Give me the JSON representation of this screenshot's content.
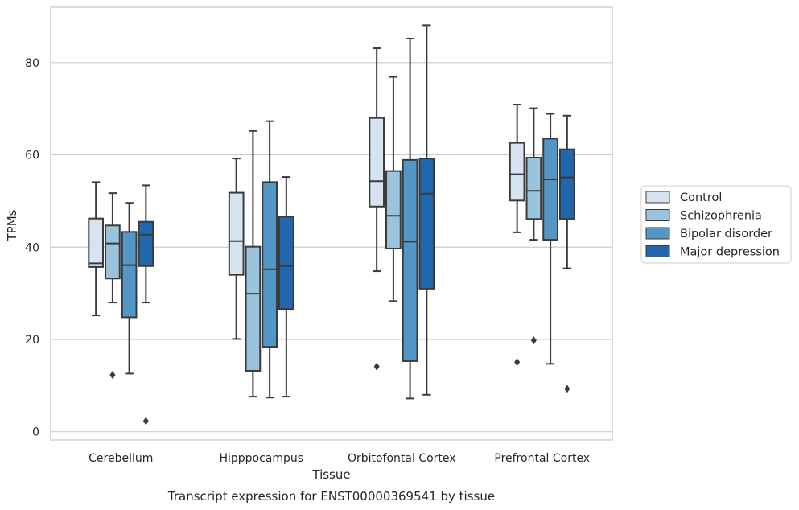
{
  "chart_data": {
    "type": "boxplot",
    "title": "Transcript expression for ENST00000369541 by tissue",
    "xlabel": "Tissue",
    "ylabel": "TPMs",
    "ylim": [
      -1.8,
      92
    ],
    "yticks": [
      0,
      20,
      40,
      60,
      80
    ],
    "grid": "horizontal",
    "legend_position": "right",
    "categories": [
      "Cerebellum",
      "Hipppocampus",
      "Orbitofontal Cortex",
      "Prefrontal Cortex"
    ],
    "series": [
      {
        "name": "Control",
        "color": "#d6e4f2",
        "boxes": [
          {
            "whislo": 25.2,
            "q1": 35.7,
            "med": 36.5,
            "q3": 46.2,
            "whishi": 54.1,
            "fliers": []
          },
          {
            "whislo": 20.1,
            "q1": 34.0,
            "med": 41.3,
            "q3": 51.8,
            "whishi": 59.2,
            "fliers": []
          },
          {
            "whislo": 34.8,
            "q1": 48.8,
            "med": 54.3,
            "q3": 68.0,
            "whishi": 83.1,
            "fliers": [
              14.1
            ]
          },
          {
            "whislo": 43.2,
            "q1": 50.1,
            "med": 55.8,
            "q3": 62.6,
            "whishi": 70.9,
            "fliers": [
              15.1
            ]
          }
        ]
      },
      {
        "name": "Schizophrenia",
        "color": "#9ac4de",
        "boxes": [
          {
            "whislo": 28.0,
            "q1": 33.2,
            "med": 40.8,
            "q3": 44.7,
            "whishi": 51.7,
            "fliers": [
              12.3
            ]
          },
          {
            "whislo": 7.6,
            "q1": 13.2,
            "med": 29.9,
            "q3": 40.1,
            "whishi": 65.2,
            "fliers": []
          },
          {
            "whislo": 28.3,
            "q1": 39.7,
            "med": 46.8,
            "q3": 56.5,
            "whishi": 76.9,
            "fliers": []
          },
          {
            "whislo": 41.6,
            "q1": 46.1,
            "med": 52.2,
            "q3": 59.4,
            "whishi": 70.1,
            "fliers": [
              19.8
            ]
          }
        ]
      },
      {
        "name": "Bipolar disorder",
        "color": "#5297c6",
        "boxes": [
          {
            "whislo": 12.6,
            "q1": 24.8,
            "med": 36.1,
            "q3": 43.3,
            "whishi": 49.6,
            "fliers": []
          },
          {
            "whislo": 7.4,
            "q1": 18.4,
            "med": 35.2,
            "q3": 54.1,
            "whishi": 67.3,
            "fliers": []
          },
          {
            "whislo": 7.2,
            "q1": 15.3,
            "med": 41.2,
            "q3": 58.9,
            "whishi": 85.2,
            "fliers": []
          },
          {
            "whislo": 14.7,
            "q1": 41.6,
            "med": 54.7,
            "q3": 63.5,
            "whishi": 68.9,
            "fliers": []
          }
        ]
      },
      {
        "name": "Major depression",
        "color": "#2266ac",
        "boxes": [
          {
            "whislo": 28.0,
            "q1": 35.9,
            "med": 42.7,
            "q3": 45.5,
            "whishi": 53.4,
            "fliers": [
              2.3
            ]
          },
          {
            "whislo": 7.6,
            "q1": 26.6,
            "med": 35.9,
            "q3": 46.6,
            "whishi": 55.2,
            "fliers": []
          },
          {
            "whislo": 8.0,
            "q1": 31.0,
            "med": 51.6,
            "q3": 59.2,
            "whishi": 88.1,
            "fliers": []
          },
          {
            "whislo": 35.4,
            "q1": 46.1,
            "med": 55.1,
            "q3": 61.2,
            "whishi": 68.5,
            "fliers": [
              9.3
            ]
          }
        ]
      }
    ]
  },
  "colors": {
    "box_edge": "#3a3a3a",
    "grid": "#cccccc",
    "frame": "#cccccc",
    "text": "#262626"
  }
}
